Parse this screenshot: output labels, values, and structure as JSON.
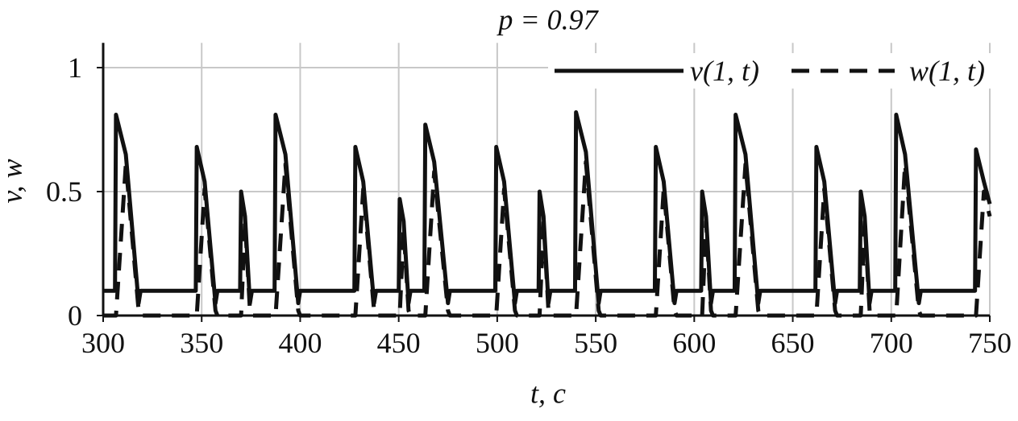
{
  "chart_data": {
    "type": "line",
    "title": "p = 0.97",
    "x_label": "t, c",
    "y_label": "v, w",
    "xlim": [
      300,
      750
    ],
    "ylim": [
      0,
      1.1
    ],
    "xticks": [
      300,
      350,
      400,
      450,
      500,
      550,
      600,
      650,
      700,
      750
    ],
    "yticks": [
      0,
      0.5,
      1
    ],
    "grid": true,
    "legend": "top-right",
    "x": [
      300,
      306,
      306.5,
      311.5,
      318,
      319,
      347,
      347.5,
      351.5,
      357,
      358,
      369.5,
      370,
      372,
      374.5,
      375.5,
      387,
      387.5,
      392.5,
      399,
      400,
      427.5,
      428,
      432,
      437.5,
      438.5,
      450,
      450.5,
      452.5,
      455,
      456,
      463,
      463.5,
      468,
      475,
      476,
      499,
      499.5,
      503.5,
      509,
      510,
      521,
      521.5,
      523.5,
      526,
      527,
      539.5,
      540,
      545,
      551.5,
      552.5,
      580,
      580.5,
      584.5,
      590,
      591,
      603.5,
      604,
      606,
      608.5,
      609.5,
      620.5,
      621,
      626,
      632.5,
      633.5,
      661.5,
      662,
      666,
      671.5,
      672.5,
      684,
      684.5,
      686.5,
      689,
      690,
      702,
      702.5,
      707,
      714,
      715,
      742.5,
      743,
      747,
      750
    ],
    "series": [
      {
        "name": "v(1, t)",
        "color": "#111111",
        "dash": "solid",
        "values": [
          0.1,
          0.1,
          0.81,
          0.65,
          0.05,
          0.1,
          0.1,
          0.68,
          0.54,
          0.05,
          0.1,
          0.1,
          0.5,
          0.4,
          0.05,
          0.1,
          0.1,
          0.81,
          0.65,
          0.05,
          0.1,
          0.1,
          0.68,
          0.54,
          0.05,
          0.1,
          0.1,
          0.47,
          0.38,
          0.05,
          0.1,
          0.1,
          0.77,
          0.62,
          0.05,
          0.1,
          0.1,
          0.68,
          0.54,
          0.05,
          0.1,
          0.1,
          0.5,
          0.4,
          0.05,
          0.1,
          0.1,
          0.82,
          0.66,
          0.05,
          0.1,
          0.1,
          0.68,
          0.54,
          0.05,
          0.1,
          0.1,
          0.5,
          0.4,
          0.05,
          0.1,
          0.1,
          0.81,
          0.65,
          0.05,
          0.1,
          0.1,
          0.68,
          0.54,
          0.05,
          0.1,
          0.1,
          0.5,
          0.4,
          0.05,
          0.1,
          0.1,
          0.81,
          0.65,
          0.05,
          0.1,
          0.1,
          0.67,
          0.54,
          0.45
        ]
      },
      {
        "name": "w(1, t)",
        "color": "#111111",
        "dash": "dashed",
        "values": [
          0,
          0,
          0,
          0.61,
          0.02,
          0,
          0,
          0,
          0.51,
          0.02,
          0,
          0,
          0,
          0.38,
          0.02,
          0,
          0,
          0,
          0.61,
          0.02,
          0,
          0,
          0,
          0.51,
          0.02,
          0,
          0,
          0,
          0.35,
          0.02,
          0,
          0,
          0,
          0.58,
          0.02,
          0,
          0,
          0,
          0.51,
          0.02,
          0,
          0,
          0,
          0.38,
          0.02,
          0,
          0,
          0,
          0.62,
          0.02,
          0,
          0,
          0,
          0.51,
          0.02,
          0,
          0,
          0,
          0.38,
          0.02,
          0,
          0,
          0,
          0.61,
          0.02,
          0,
          0,
          0,
          0.51,
          0.02,
          0,
          0,
          0,
          0.38,
          0.02,
          0,
          0,
          0,
          0.61,
          0.02,
          0,
          0,
          0,
          0.5,
          0.4
        ]
      }
    ]
  }
}
